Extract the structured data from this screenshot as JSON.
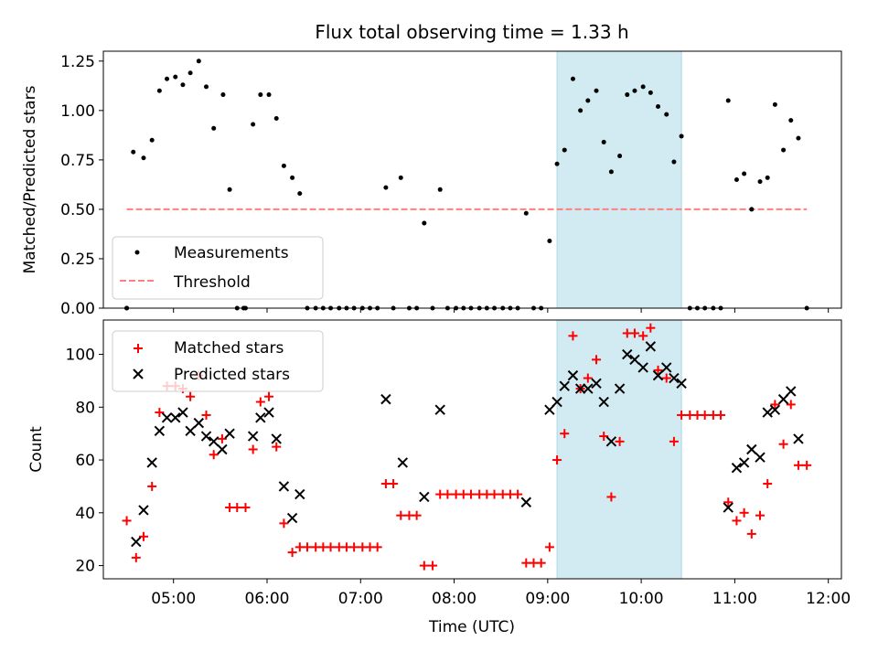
{
  "figure": {
    "title": "Flux total observing time = 1.33 h",
    "xlabel": "Time (UTC)",
    "x_ticks": [
      "05:00",
      "06:00",
      "07:00",
      "08:00",
      "09:00",
      "10:00",
      "11:00",
      "12:00"
    ],
    "x_tick_hours": [
      5,
      6,
      7,
      8,
      9,
      10,
      11,
      12
    ],
    "xlim_hours": [
      4.25,
      12.14
    ],
    "observing_window_hours": [
      9.1,
      10.43
    ],
    "window_color": "#add8e6"
  },
  "chart_data": [
    {
      "type": "scatter",
      "ylabel": "Matched/Predicted stars",
      "ylim": [
        0,
        1.3
      ],
      "y_ticks": [
        "0.00",
        "0.25",
        "0.50",
        "0.75",
        "1.00",
        "1.25"
      ],
      "y_tick_values": [
        0,
        0.25,
        0.5,
        0.75,
        1.0,
        1.25
      ],
      "legend": {
        "placement": "lower-left"
      },
      "threshold": {
        "name": "Threshold",
        "value": 0.5,
        "x_range_hours": [
          4.5,
          11.77
        ],
        "color": "#ff7f7f",
        "style": "dashed"
      },
      "series": [
        {
          "name": "Measurements",
          "color": "#000000",
          "marker": "dot",
          "x_hours": [
            4.5,
            4.57,
            4.68,
            4.77,
            4.85,
            4.93,
            5.02,
            5.1,
            5.18,
            5.27,
            5.35,
            5.43,
            5.53,
            5.6,
            5.75,
            5.85,
            5.93,
            6.02,
            6.1,
            6.18,
            6.27,
            6.35,
            4.5,
            6.43,
            6.52,
            6.6,
            6.68,
            6.77,
            6.85,
            6.93,
            7.02,
            7.1,
            7.18,
            7.27,
            7.35,
            7.43,
            7.52,
            7.6,
            7.68,
            7.77,
            7.85,
            7.93,
            8.02,
            8.1,
            8.18,
            8.27,
            8.35,
            8.43,
            8.52,
            8.6,
            8.68,
            8.77,
            8.85,
            8.93,
            9.02,
            9.1,
            9.18,
            9.27,
            9.35,
            9.43,
            9.52,
            9.6,
            9.68,
            9.77,
            9.85,
            9.93,
            10.02,
            10.1,
            10.18,
            10.27,
            10.35,
            10.43,
            10.52,
            10.6,
            10.68,
            10.77,
            10.85,
            10.93,
            11.02,
            11.1,
            11.18,
            11.27,
            11.35,
            11.43,
            11.52,
            11.6,
            11.68,
            11.77,
            5.68,
            5.77
          ],
          "values": [
            0.0,
            0.79,
            0.76,
            0.85,
            1.1,
            1.16,
            1.17,
            1.13,
            1.19,
            1.25,
            1.12,
            0.91,
            1.08,
            0.6,
            0.0,
            0.93,
            1.08,
            1.08,
            0.96,
            0.72,
            0.66,
            0.58,
            0.0,
            0.0,
            0.0,
            0.0,
            0.0,
            0.0,
            0.0,
            0.0,
            0.0,
            0.0,
            0.0,
            0.61,
            0.0,
            0.66,
            0.0,
            0.0,
            0.43,
            0.0,
            0.6,
            0.0,
            0.0,
            0.0,
            0.0,
            0.0,
            0.0,
            0.0,
            0.0,
            0.0,
            0.0,
            0.48,
            0.0,
            0.0,
            0.34,
            0.73,
            0.8,
            1.16,
            1.0,
            1.05,
            1.1,
            0.84,
            0.69,
            0.77,
            1.08,
            1.1,
            1.12,
            1.09,
            1.02,
            0.98,
            0.74,
            0.87,
            0.0,
            0.0,
            0.0,
            0.0,
            0.0,
            1.05,
            0.65,
            0.68,
            0.5,
            0.64,
            0.66,
            1.03,
            0.8,
            0.95,
            0.86,
            0.0,
            0.0,
            0.0
          ]
        }
      ]
    },
    {
      "type": "scatter",
      "ylabel": "Count",
      "ylim": [
        15,
        113
      ],
      "y_ticks": [
        "20",
        "40",
        "60",
        "80",
        "100"
      ],
      "y_tick_values": [
        20,
        40,
        60,
        80,
        100
      ],
      "legend": {
        "placement": "upper-left"
      },
      "series": [
        {
          "name": "Matched stars",
          "color": "#ff0000",
          "marker": "plus",
          "x_hours": [
            4.5,
            4.6,
            4.68,
            4.77,
            4.85,
            4.93,
            5.02,
            5.1,
            5.18,
            5.27,
            5.35,
            5.43,
            5.52,
            5.6,
            5.68,
            5.77,
            5.85,
            5.93,
            6.02,
            6.1,
            6.18,
            6.27,
            6.35,
            6.43,
            6.52,
            6.6,
            6.68,
            6.77,
            6.85,
            6.93,
            7.02,
            7.1,
            7.18,
            7.27,
            7.35,
            7.43,
            7.52,
            7.6,
            7.68,
            7.77,
            7.85,
            7.93,
            8.02,
            8.1,
            8.18,
            8.27,
            8.35,
            8.43,
            8.52,
            8.6,
            8.68,
            8.77,
            8.85,
            8.93,
            9.02,
            9.1,
            9.18,
            9.27,
            9.35,
            9.43,
            9.52,
            9.6,
            9.68,
            9.77,
            9.85,
            9.93,
            10.02,
            10.1,
            10.18,
            10.27,
            10.35,
            10.43,
            10.52,
            10.6,
            10.68,
            10.77,
            10.85,
            10.93,
            11.02,
            11.1,
            11.18,
            11.27,
            11.35,
            11.43,
            11.52,
            11.6,
            11.68,
            11.77
          ],
          "values": [
            37,
            23,
            31,
            50,
            78,
            88,
            88,
            87,
            84,
            92,
            77,
            62,
            68,
            42,
            42,
            42,
            64,
            82,
            84,
            65,
            36,
            25,
            27,
            27,
            27,
            27,
            27,
            27,
            27,
            27,
            27,
            27,
            27,
            51,
            51,
            39,
            39,
            39,
            20,
            20,
            47,
            47,
            47,
            47,
            47,
            47,
            47,
            47,
            47,
            47,
            47,
            21,
            21,
            21,
            27,
            60,
            70,
            107,
            87,
            91,
            98,
            69,
            46,
            67,
            108,
            108,
            107,
            110,
            94,
            91,
            67,
            77,
            77,
            77,
            77,
            77,
            77,
            44,
            37,
            40,
            32,
            39,
            51,
            81,
            66,
            81,
            58,
            58
          ]
        },
        {
          "name": "Predicted stars",
          "color": "#000000",
          "marker": "cross",
          "x_hours": [
            4.6,
            4.68,
            4.77,
            4.85,
            4.93,
            5.02,
            5.1,
            5.18,
            5.27,
            5.35,
            5.43,
            5.52,
            5.6,
            5.85,
            5.93,
            6.02,
            6.1,
            6.18,
            6.27,
            6.35,
            7.27,
            7.45,
            7.68,
            7.85,
            8.77,
            9.02,
            9.1,
            9.18,
            9.27,
            9.35,
            9.43,
            9.52,
            9.6,
            9.68,
            9.77,
            9.85,
            9.93,
            10.02,
            10.1,
            10.18,
            10.27,
            10.35,
            10.43,
            10.93,
            11.02,
            11.1,
            11.18,
            11.27,
            11.35,
            11.43,
            11.52,
            11.6,
            11.68
          ],
          "values": [
            29,
            41,
            59,
            71,
            76,
            76,
            78,
            71,
            74,
            69,
            67,
            64,
            70,
            69,
            76,
            78,
            68,
            50,
            38,
            47,
            83,
            59,
            46,
            79,
            44,
            79,
            82,
            88,
            92,
            87,
            87,
            89,
            82,
            67,
            87,
            100,
            98,
            95,
            103,
            92,
            95,
            91,
            89,
            42,
            57,
            59,
            64,
            61,
            78,
            79,
            83,
            86,
            68
          ]
        }
      ]
    }
  ]
}
